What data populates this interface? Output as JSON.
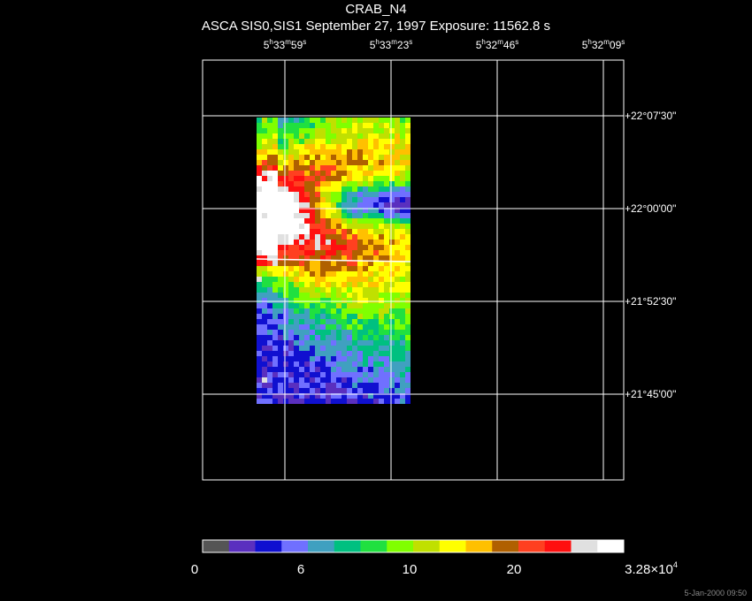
{
  "header": {
    "title": "CRAB_N4",
    "subtitle": "ASCA SIS0,SIS1 September 27, 1997 Exposure: 11562.8 s"
  },
  "axes": {
    "ra_labels": [
      {
        "h": "5",
        "m": "33",
        "s": "59"
      },
      {
        "h": "5",
        "m": "33",
        "s": "23"
      },
      {
        "h": "5",
        "m": "32",
        "s": "46"
      },
      {
        "h": "5",
        "m": "32",
        "s": "09"
      }
    ],
    "dec_labels": [
      "+22°07'30\"",
      "+22°00'00\"",
      "+21°52'30\"",
      "+21°45'00\""
    ]
  },
  "colorbar": {
    "colors": [
      "#555555",
      "#5a2fbf",
      "#1010d0",
      "#7070ff",
      "#40a0c0",
      "#00c080",
      "#20e040",
      "#80ff00",
      "#c0e000",
      "#ffff00",
      "#ffc000",
      "#b06000",
      "#ff4020",
      "#ff1010",
      "#e0e0e0",
      "#ffffff"
    ],
    "ticks": [
      {
        "label": "0"
      },
      {
        "label": "6"
      },
      {
        "label": "10"
      },
      {
        "label": "20"
      },
      {
        "label": "3.28×10",
        "exp": "4"
      }
    ]
  },
  "footer": {
    "timestamp": "5-Jan-2000 09:50"
  }
}
